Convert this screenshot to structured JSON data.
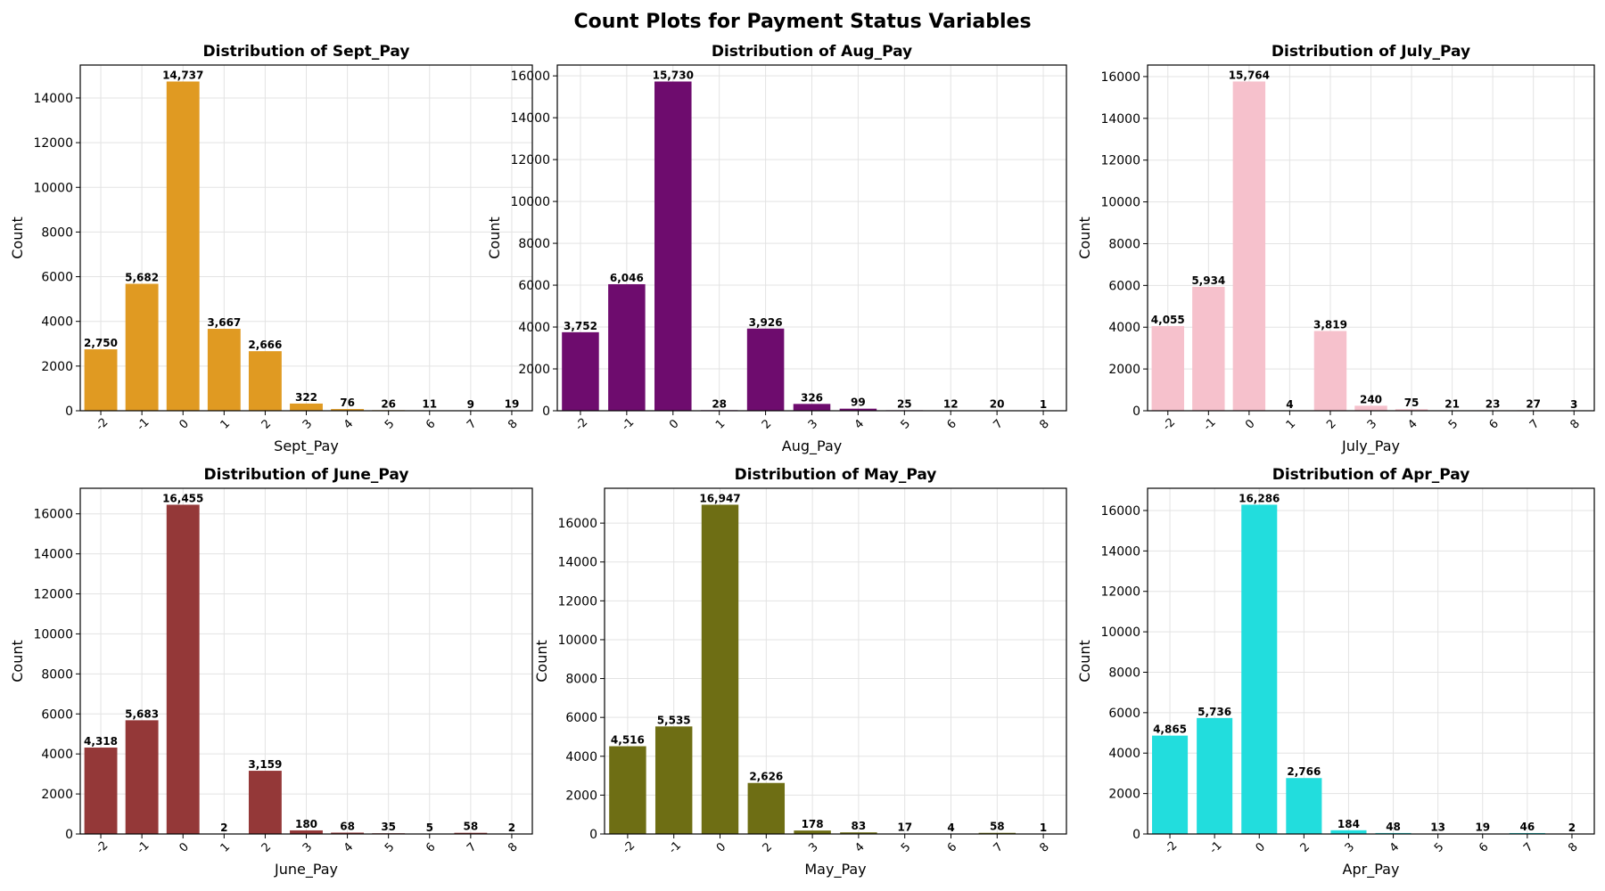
{
  "figure_title": "Count Plots for Payment Status Variables",
  "chart_data": [
    {
      "type": "bar",
      "title": "Distribution of Sept_Pay",
      "xlabel": "Sept_Pay",
      "ylabel": "Count",
      "color": "#e09a22",
      "categories": [
        "-2",
        "-1",
        "0",
        "1",
        "2",
        "3",
        "4",
        "5",
        "6",
        "7",
        "8"
      ],
      "values": [
        2750,
        5682,
        14737,
        3667,
        2666,
        322,
        76,
        26,
        11,
        9,
        19
      ],
      "value_labels": [
        "2,750",
        "5,682",
        "14,737",
        "3,667",
        "2,666",
        "322",
        "76",
        "26",
        "11",
        "9",
        "19"
      ],
      "ylim": [
        0,
        15474
      ],
      "yticks": [
        0,
        2000,
        4000,
        6000,
        8000,
        10000,
        12000,
        14000
      ],
      "grid": true
    },
    {
      "type": "bar",
      "title": "Distribution of Aug_Pay",
      "xlabel": "Aug_Pay",
      "ylabel": "Count",
      "color": "#6e0c6e",
      "categories": [
        "-2",
        "-1",
        "0",
        "1",
        "2",
        "3",
        "4",
        "5",
        "6",
        "7",
        "8"
      ],
      "values": [
        3752,
        6046,
        15730,
        28,
        3926,
        326,
        99,
        25,
        12,
        20,
        1
      ],
      "value_labels": [
        "3,752",
        "6,046",
        "15,730",
        "28",
        "3,926",
        "326",
        "99",
        "25",
        "12",
        "20",
        "1"
      ],
      "ylim": [
        0,
        16517
      ],
      "yticks": [
        0,
        2000,
        4000,
        6000,
        8000,
        10000,
        12000,
        14000,
        16000
      ],
      "grid": true
    },
    {
      "type": "bar",
      "title": "Distribution of July_Pay",
      "xlabel": "July_Pay",
      "ylabel": "Count",
      "color": "#f6c1cc",
      "categories": [
        "-2",
        "-1",
        "0",
        "1",
        "2",
        "3",
        "4",
        "5",
        "6",
        "7",
        "8"
      ],
      "values": [
        4055,
        5934,
        15764,
        4,
        3819,
        240,
        75,
        21,
        23,
        27,
        3
      ],
      "value_labels": [
        "4,055",
        "5,934",
        "15,764",
        "4",
        "3,819",
        "240",
        "75",
        "21",
        "23",
        "27",
        "3"
      ],
      "ylim": [
        0,
        16552
      ],
      "yticks": [
        0,
        2000,
        4000,
        6000,
        8000,
        10000,
        12000,
        14000,
        16000
      ],
      "grid": true
    },
    {
      "type": "bar",
      "title": "Distribution of June_Pay",
      "xlabel": "June_Pay",
      "ylabel": "Count",
      "color": "#943838",
      "categories": [
        "-2",
        "-1",
        "0",
        "1",
        "2",
        "3",
        "4",
        "5",
        "6",
        "7",
        "8"
      ],
      "values": [
        4318,
        5683,
        16455,
        2,
        3159,
        180,
        68,
        35,
        5,
        58,
        2
      ],
      "value_labels": [
        "4,318",
        "5,683",
        "16,455",
        "2",
        "3,159",
        "180",
        "68",
        "35",
        "5",
        "58",
        "2"
      ],
      "ylim": [
        0,
        17278
      ],
      "yticks": [
        0,
        2000,
        4000,
        6000,
        8000,
        10000,
        12000,
        14000,
        16000
      ],
      "grid": true
    },
    {
      "type": "bar",
      "title": "Distribution of May_Pay",
      "xlabel": "May_Pay",
      "ylabel": "Count",
      "color": "#6e6e14",
      "categories": [
        "-2",
        "-1",
        "0",
        "2",
        "3",
        "4",
        "5",
        "6",
        "7",
        "8"
      ],
      "values": [
        4516,
        5535,
        16947,
        2626,
        178,
        83,
        17,
        4,
        58,
        1
      ],
      "value_labels": [
        "4,516",
        "5,535",
        "16,947",
        "2,626",
        "178",
        "83",
        "17",
        "4",
        "58",
        "1"
      ],
      "ylim": [
        0,
        17794
      ],
      "yticks": [
        0,
        2000,
        4000,
        6000,
        8000,
        10000,
        12000,
        14000,
        16000
      ],
      "grid": true
    },
    {
      "type": "bar",
      "title": "Distribution of Apr_Pay",
      "xlabel": "Apr_Pay",
      "ylabel": "Count",
      "color": "#22dddd",
      "categories": [
        "-2",
        "-1",
        "0",
        "2",
        "3",
        "4",
        "5",
        "6",
        "7",
        "8"
      ],
      "values": [
        4865,
        5736,
        16286,
        2766,
        184,
        48,
        13,
        19,
        46,
        2
      ],
      "value_labels": [
        "4,865",
        "5,736",
        "16,286",
        "2,766",
        "184",
        "48",
        "13",
        "19",
        "46",
        "2"
      ],
      "ylim": [
        0,
        17100
      ],
      "yticks": [
        0,
        2000,
        4000,
        6000,
        8000,
        10000,
        12000,
        14000,
        16000
      ],
      "grid": true
    }
  ]
}
